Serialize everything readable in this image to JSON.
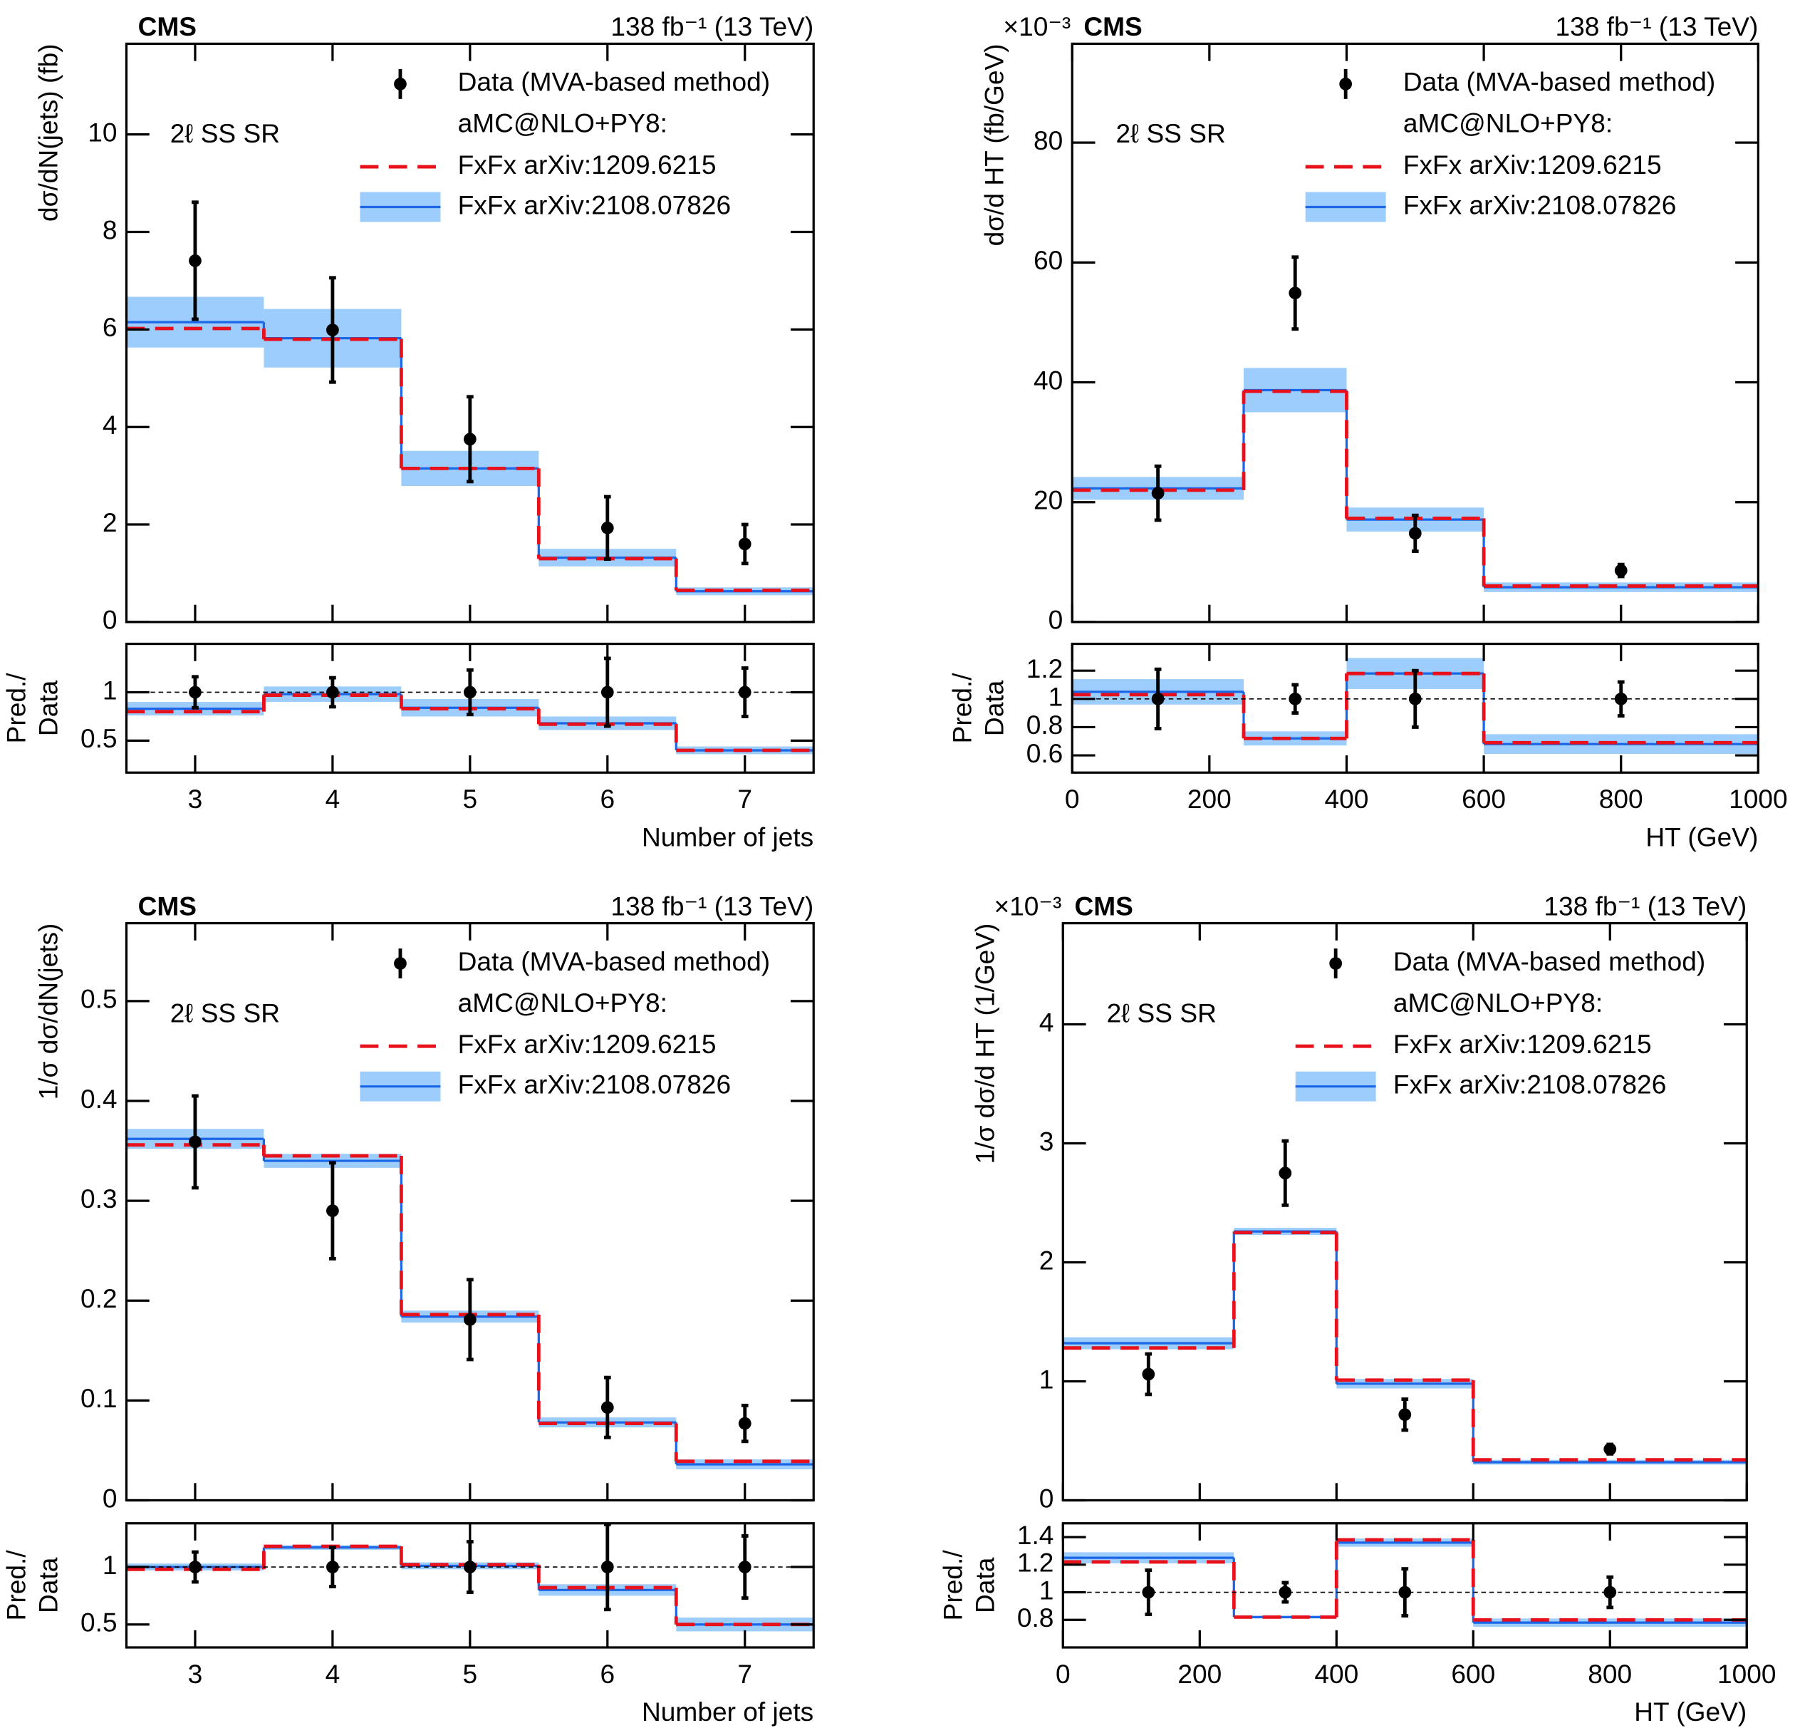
{
  "chart_data": [
    {
      "type": "histogram",
      "experiment": "CMS",
      "lumi": "138 fb⁻¹ (13 TeV)",
      "region": "2ℓ SS SR",
      "ylabel": "dσ/dN(jets) (fb)",
      "xlabel": "Number of jets",
      "legend_header": "aMC@NLO+PY8:",
      "bins": [
        2.5,
        3.5,
        4.5,
        5.5,
        6.5,
        7.5
      ],
      "xlim": [
        2.5,
        7.5
      ],
      "xticks": [
        3,
        4,
        5,
        6,
        7
      ],
      "ylim": [
        0,
        11.86
      ],
      "yticks": [
        0,
        2,
        4,
        6,
        8,
        10
      ],
      "series": [
        {
          "name": "Data (MVA-based method)",
          "color": "#000000",
          "values": [
            7.41,
            5.99,
            3.75,
            1.93,
            1.6
          ],
          "errors": [
            1.2,
            1.07,
            0.87,
            0.64,
            0.4
          ]
        },
        {
          "name": "FxFx arXiv:1209.6215",
          "color": "#e8101a",
          "values": [
            6.02,
            5.8,
            3.15,
            1.3,
            0.65
          ]
        },
        {
          "name": "FxFx arXiv:2108.07826",
          "color": "#1a66e6",
          "band_color": "#9ccdfc",
          "values": [
            6.15,
            5.82,
            3.15,
            1.32,
            0.63
          ],
          "band": [
            0.52,
            0.6,
            0.36,
            0.18,
            0.08
          ]
        }
      ],
      "ratio": {
        "ylabel": [
          "Pred./",
          "Data"
        ],
        "ylim": [
          0.17,
          1.5
        ],
        "yticks": [
          0.5,
          1
        ],
        "reference": 1,
        "series": [
          {
            "values": [
              1,
              1,
              1,
              1,
              1
            ],
            "errors": [
              0.16,
              0.15,
              0.23,
              0.35,
              0.25
            ]
          },
          {
            "values": [
              0.8,
              0.97,
              0.83,
              0.67,
              0.4
            ]
          },
          {
            "values": [
              0.83,
              0.98,
              0.84,
              0.68,
              0.4
            ],
            "band": [
              0.07,
              0.08,
              0.09,
              0.07,
              0.04
            ]
          }
        ]
      }
    },
    {
      "type": "histogram",
      "experiment": "CMS",
      "lumi": "138 fb⁻¹ (13 TeV)",
      "region": "2ℓ SS SR",
      "ylabel": "dσ/d HT (fb/GeV)",
      "y_exponent": "×10⁻³",
      "xlabel": "HT (GeV)",
      "legend_header": "aMC@NLO+PY8:",
      "bins": [
        0,
        250,
        400,
        600,
        1000
      ],
      "xlim": [
        0,
        1000
      ],
      "xticks": [
        0,
        200,
        400,
        600,
        800,
        1000
      ],
      "ylim": [
        0,
        96.5
      ],
      "yticks": [
        0,
        20,
        40,
        60,
        80
      ],
      "series": [
        {
          "name": "Data (MVA-based method)",
          "color": "#000000",
          "values": [
            21.5,
            54.9,
            14.8,
            8.6
          ],
          "errors": [
            4.5,
            6,
            3,
            1
          ]
        },
        {
          "name": "FxFx arXiv:1209.6215",
          "color": "#e8101a",
          "values": [
            22,
            38.5,
            17.3,
            6
          ]
        },
        {
          "name": "FxFx arXiv:2108.07826",
          "color": "#1a66e6",
          "band_color": "#9ccdfc",
          "values": [
            22.3,
            38.7,
            17.1,
            5.8
          ],
          "band": [
            1.9,
            3.7,
            2,
            0.8
          ]
        }
      ],
      "ratio": {
        "ylabel": [
          "Pred./",
          "Data"
        ],
        "ylim": [
          0.478,
          1.39
        ],
        "yticks": [
          0.6,
          0.8,
          1,
          1.2
        ],
        "reference": 1,
        "series": [
          {
            "values": [
              1,
              1,
              1,
              1
            ],
            "errors": [
              0.21,
              0.1,
              0.2,
              0.12
            ]
          },
          {
            "values": [
              1.03,
              0.72,
              1.18,
              0.69
            ]
          },
          {
            "values": [
              1.05,
              0.72,
              1.18,
              0.68
            ],
            "band": [
              0.09,
              0.05,
              0.11,
              0.07
            ]
          }
        ]
      }
    },
    {
      "type": "histogram",
      "experiment": "CMS",
      "lumi": "138 fb⁻¹ (13 TeV)",
      "region": "2ℓ SS SR",
      "ylabel": "1/σ dσ/dN(jets)",
      "xlabel": "Number of jets",
      "legend_header": "aMC@NLO+PY8:",
      "bins": [
        2.5,
        3.5,
        4.5,
        5.5,
        6.5,
        7.5
      ],
      "xlim": [
        2.5,
        7.5
      ],
      "xticks": [
        3,
        4,
        5,
        6,
        7
      ],
      "ylim": [
        0,
        0.578
      ],
      "yticks": [
        0,
        0.1,
        0.2,
        0.3,
        0.4,
        0.5
      ],
      "series": [
        {
          "name": "Data (MVA-based method)",
          "color": "#000000",
          "values": [
            0.359,
            0.29,
            0.181,
            0.093,
            0.077
          ],
          "errors": [
            0.046,
            0.048,
            0.04,
            0.03,
            0.018
          ]
        },
        {
          "name": "FxFx arXiv:1209.6215",
          "color": "#e8101a",
          "values": [
            0.356,
            0.345,
            0.186,
            0.077,
            0.039
          ]
        },
        {
          "name": "FxFx arXiv:2108.07826",
          "color": "#1a66e6",
          "band_color": "#9ccdfc",
          "values": [
            0.362,
            0.34,
            0.184,
            0.078,
            0.036
          ],
          "band": [
            0.01,
            0.007,
            0.006,
            0.005,
            0.005
          ]
        }
      ],
      "ratio": {
        "ylabel": [
          "Pred./",
          "Data"
        ],
        "ylim": [
          0.3,
          1.38
        ],
        "yticks": [
          0.5,
          1
        ],
        "reference": 1,
        "series": [
          {
            "values": [
              1,
              1,
              1,
              1,
              1
            ],
            "errors": [
              0.13,
              0.17,
              0.22,
              0.37,
              0.27
            ]
          },
          {
            "values": [
              0.98,
              1.18,
              1.02,
              0.82,
              0.5
            ]
          },
          {
            "values": [
              1.0,
              1.17,
              1.01,
              0.8,
              0.5
            ],
            "band": [
              0.03,
              0.02,
              0.03,
              0.05,
              0.06
            ]
          }
        ]
      }
    },
    {
      "type": "histogram",
      "experiment": "CMS",
      "lumi": "138 fb⁻¹ (13 TeV)",
      "region": "2ℓ SS SR",
      "ylabel": "1/σ dσ/d HT (1/GeV)",
      "y_exponent": "×10⁻³",
      "xlabel": "HT (GeV)",
      "legend_header": "aMC@NLO+PY8:",
      "bins": [
        0,
        250,
        400,
        600,
        1000
      ],
      "xlim": [
        0,
        1000
      ],
      "xticks": [
        0,
        200,
        400,
        600,
        800,
        1000
      ],
      "ylim": [
        0,
        4.85
      ],
      "yticks": [
        0,
        1,
        2,
        3,
        4
      ],
      "series": [
        {
          "name": "Data (MVA-based method)",
          "color": "#000000",
          "values": [
            1.06,
            2.75,
            0.72,
            0.43
          ],
          "errors": [
            0.17,
            0.27,
            0.13,
            0.04
          ]
        },
        {
          "name": "FxFx arXiv:1209.6215",
          "color": "#e8101a",
          "values": [
            1.28,
            2.25,
            1.01,
            0.34
          ]
        },
        {
          "name": "FxFx arXiv:2108.07826",
          "color": "#1a66e6",
          "band_color": "#9ccdfc",
          "values": [
            1.32,
            2.26,
            0.98,
            0.32
          ],
          "band": [
            0.05,
            0.03,
            0.04,
            0.02
          ]
        }
      ],
      "ratio": {
        "ylabel": [
          "Pred./",
          "Data"
        ],
        "ylim": [
          0.6,
          1.5
        ],
        "yticks": [
          0.8,
          1,
          1.2,
          1.4
        ],
        "reference": 1,
        "series": [
          {
            "values": [
              1,
              1,
              1,
              1
            ],
            "errors": [
              0.16,
              0.07,
              0.17,
              0.11
            ]
          },
          {
            "values": [
              1.22,
              0.82,
              1.38,
              0.8
            ]
          },
          {
            "values": [
              1.25,
              0.82,
              1.36,
              0.78
            ],
            "band": [
              0.04,
              0.01,
              0.03,
              0.03
            ]
          }
        ]
      }
    }
  ]
}
